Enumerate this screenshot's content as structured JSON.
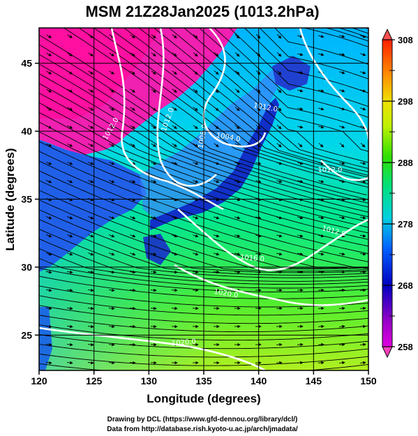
{
  "title": "MSM 21Z28Jan2025 (1013.2hPa)",
  "map": {
    "xlabel": "Longitude (degrees)",
    "ylabel": "Latitude  (degrees)",
    "xlim": [
      120,
      150
    ],
    "ylim": [
      22.4,
      47.6
    ],
    "xticks": [
      120,
      125,
      130,
      135,
      140,
      145,
      150
    ],
    "yticks": [
      25,
      30,
      35,
      40,
      45
    ],
    "grid": true
  },
  "colorbar": {
    "min": 258,
    "max": 308,
    "ticks": [
      258,
      268,
      278,
      288,
      298,
      308
    ],
    "minor_ticks": [
      263,
      273,
      283,
      293,
      303
    ],
    "extend": "both"
  },
  "isobar_labels": [
    {
      "text": "1012.0",
      "lon": 131.9,
      "lat": 40.8,
      "angle": -70
    },
    {
      "text": "1008.0",
      "lon": 135.1,
      "lat": 39.6,
      "angle": -80
    },
    {
      "text": "1004.0",
      "lon": 137.2,
      "lat": 39.4,
      "angle": 10
    },
    {
      "text": "1012.0",
      "lon": 126.7,
      "lat": 40.1,
      "angle": -60
    },
    {
      "text": "1012.0",
      "lon": 140.6,
      "lat": 41.6,
      "angle": 10
    },
    {
      "text": "1012.0",
      "lon": 146.8,
      "lat": 32.5,
      "angle": 15
    },
    {
      "text": "1016.0",
      "lon": 139.4,
      "lat": 30.5,
      "angle": 5
    },
    {
      "text": "1020.0",
      "lon": 137.0,
      "lat": 27.9,
      "angle": 10
    },
    {
      "text": "1020.0",
      "lon": 133.2,
      "lat": 24.3,
      "angle": -5
    },
    {
      "text": "1012.0",
      "lon": 146.5,
      "lat": 37.0,
      "angle": 0
    }
  ],
  "credits": {
    "line1": "Drawing by DCL (https://www.gfd-dennou.org/library/dcl/)",
    "line2": "Data from http://database.rish.kyoto-u.ac.jp/arch/jmadata/"
  }
}
